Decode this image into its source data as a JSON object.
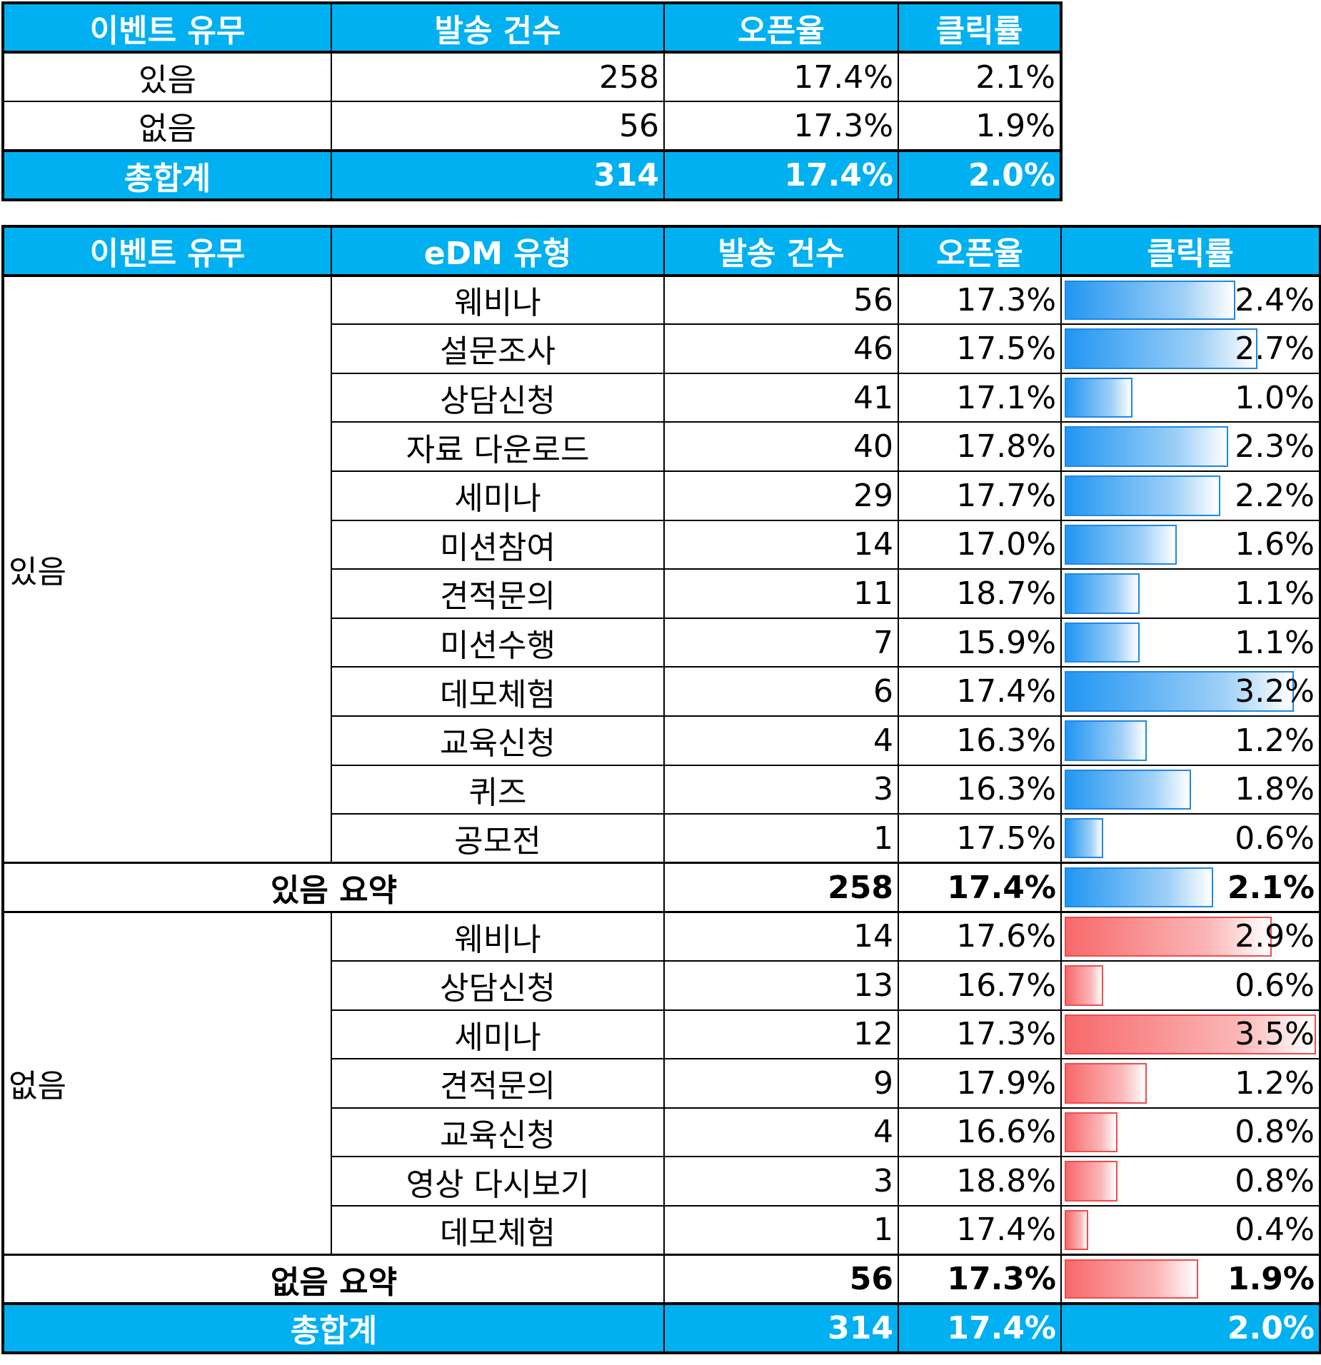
{
  "summary_table": {
    "headers": [
      "이벤트 유무",
      "발송 건수",
      "오픈율",
      "클릭률"
    ],
    "rows": [
      {
        "event": "있음",
        "count": "258",
        "open": "17.4%",
        "click": "2.1%"
      },
      {
        "event": "없음",
        "count": "56",
        "open": "17.3%",
        "click": "1.9%"
      }
    ],
    "total": {
      "label": "총합계",
      "count": "314",
      "open": "17.4%",
      "click": "2.0%"
    }
  },
  "detail_table": {
    "headers": [
      "이벤트 유무",
      "eDM 유형",
      "발송 건수",
      "오픈율",
      "클릭률"
    ],
    "groups": [
      {
        "label": "있음",
        "bar_color": "blue",
        "rows": [
          {
            "type": "웨비나",
            "count": "56",
            "open": "17.3%",
            "click": "2.4%",
            "click_value": 2.4
          },
          {
            "type": "설문조사",
            "count": "46",
            "open": "17.5%",
            "click": "2.7%",
            "click_value": 2.7
          },
          {
            "type": "상담신청",
            "count": "41",
            "open": "17.1%",
            "click": "1.0%",
            "click_value": 1.0
          },
          {
            "type": "자료 다운로드",
            "count": "40",
            "open": "17.8%",
            "click": "2.3%",
            "click_value": 2.3
          },
          {
            "type": "세미나",
            "count": "29",
            "open": "17.7%",
            "click": "2.2%",
            "click_value": 2.2
          },
          {
            "type": "미션참여",
            "count": "14",
            "open": "17.0%",
            "click": "1.6%",
            "click_value": 1.6
          },
          {
            "type": "견적문의",
            "count": "11",
            "open": "18.7%",
            "click": "1.1%",
            "click_value": 1.1
          },
          {
            "type": "미션수행",
            "count": "7",
            "open": "15.9%",
            "click": "1.1%",
            "click_value": 1.1
          },
          {
            "type": "데모체험",
            "count": "6",
            "open": "17.4%",
            "click": "3.2%",
            "click_value": 3.2
          },
          {
            "type": "교육신청",
            "count": "4",
            "open": "16.3%",
            "click": "1.2%",
            "click_value": 1.2
          },
          {
            "type": "퀴즈",
            "count": "3",
            "open": "16.3%",
            "click": "1.8%",
            "click_value": 1.8
          },
          {
            "type": "공모전",
            "count": "1",
            "open": "17.5%",
            "click": "0.6%",
            "click_value": 0.6
          }
        ],
        "summary": {
          "label": "있음 요약",
          "count": "258",
          "open": "17.4%",
          "click": "2.1%",
          "click_value": 2.1
        }
      },
      {
        "label": "없음",
        "bar_color": "red",
        "rows": [
          {
            "type": "웨비나",
            "count": "14",
            "open": "17.6%",
            "click": "2.9%",
            "click_value": 2.9
          },
          {
            "type": "상담신청",
            "count": "13",
            "open": "16.7%",
            "click": "0.6%",
            "click_value": 0.6
          },
          {
            "type": "세미나",
            "count": "12",
            "open": "17.3%",
            "click": "3.5%",
            "click_value": 3.5
          },
          {
            "type": "견적문의",
            "count": "9",
            "open": "17.9%",
            "click": "1.2%",
            "click_value": 1.2
          },
          {
            "type": "교육신청",
            "count": "4",
            "open": "16.6%",
            "click": "0.8%",
            "click_value": 0.8
          },
          {
            "type": "영상 다시보기",
            "count": "3",
            "open": "18.8%",
            "click": "0.8%",
            "click_value": 0.8
          },
          {
            "type": "데모체험",
            "count": "1",
            "open": "17.4%",
            "click": "0.4%",
            "click_value": 0.4
          }
        ],
        "summary": {
          "label": "없음 요약",
          "count": "56",
          "open": "17.3%",
          "click": "1.9%",
          "click_value": 1.9
        }
      }
    ],
    "total": {
      "label": "총합계",
      "count": "314",
      "open": "17.4%",
      "click": "2.0%"
    },
    "click_bar_max": 3.5
  }
}
